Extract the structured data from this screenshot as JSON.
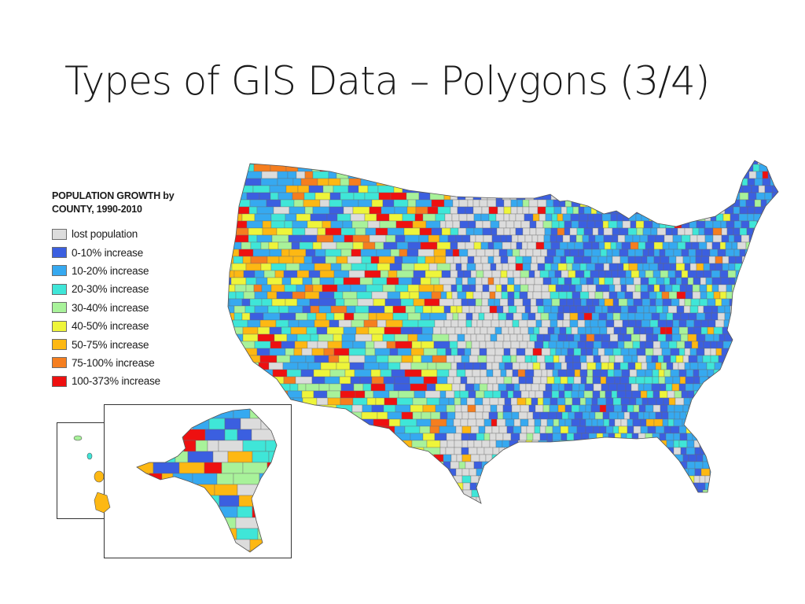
{
  "slide": {
    "title": "Types of GIS Data – Polygons (3/4)"
  },
  "legend": {
    "title": "POPULATION GROWTH by\nCOUNTY, 1990-2010",
    "items": [
      {
        "label": "lost population",
        "color": "#dcdcdc"
      },
      {
        "label": "0-10% increase",
        "color": "#3b5fe0"
      },
      {
        "label": "10-20% increase",
        "color": "#36a9f0"
      },
      {
        "label": "20-30% increase",
        "color": "#3fe6d8"
      },
      {
        "label": "30-40% increase",
        "color": "#a8f29a"
      },
      {
        "label": "40-50% increase",
        "color": "#eef53a"
      },
      {
        "label": "50-75% increase",
        "color": "#fdb813"
      },
      {
        "label": "75-100% increase",
        "color": "#f57e1f"
      },
      {
        "label": "100-373% increase",
        "color": "#ee1010"
      }
    ]
  }
}
